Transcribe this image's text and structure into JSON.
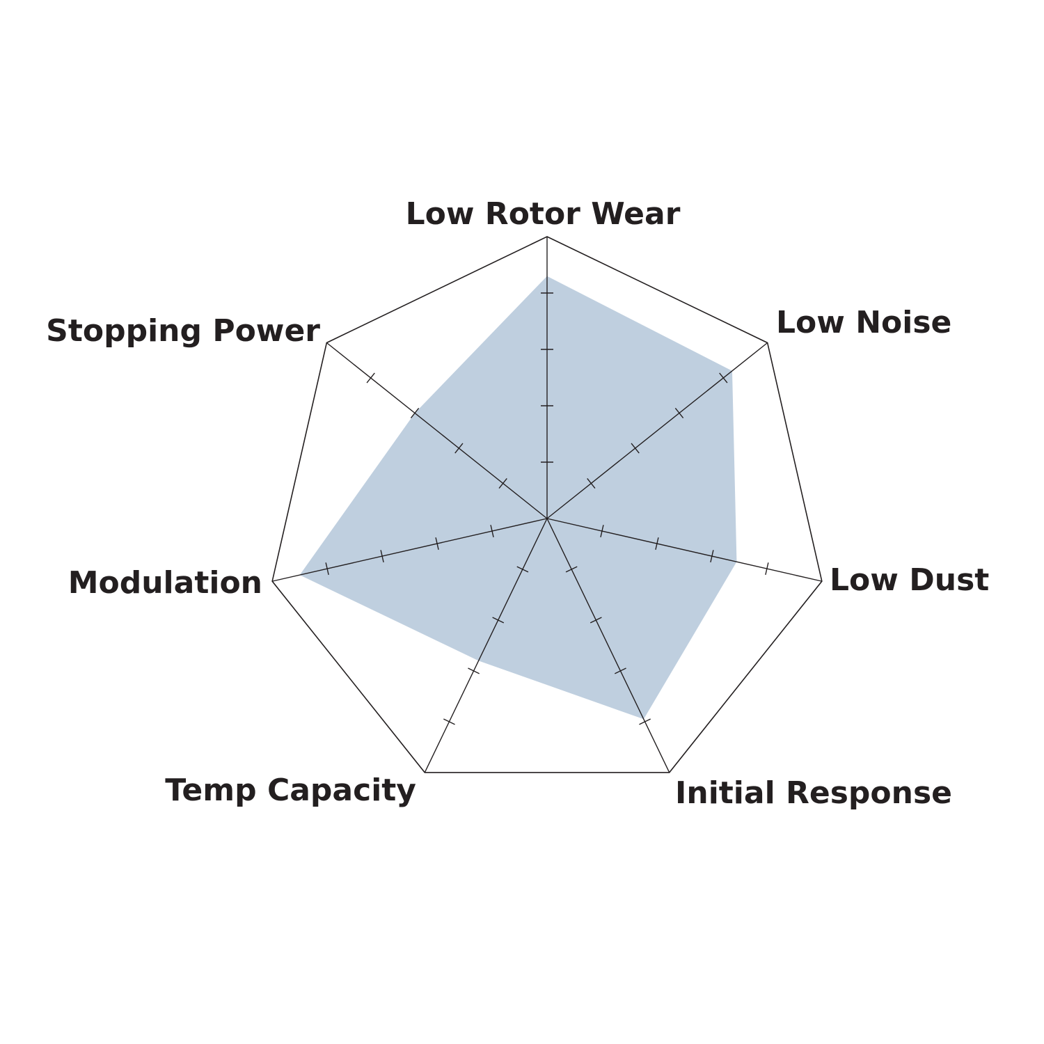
{
  "chart_data": {
    "type": "radar",
    "categories": [
      "Low Rotor Wear",
      "Low Noise",
      "Low Dust",
      "Initial Response",
      "Temp Capacity",
      "Modulation",
      "Stopping Power"
    ],
    "values": [
      4.3,
      4.2,
      3.45,
      3.95,
      2.8,
      4.5,
      3.0
    ],
    "rmax": 5,
    "ticks": [
      1,
      2,
      3,
      4,
      5
    ],
    "grid": "outer polygon only, tick marks on spokes",
    "legend": "none",
    "colors": {
      "fill": "#bfcfdf",
      "lines": "#231f20",
      "text": "#231f20"
    }
  }
}
